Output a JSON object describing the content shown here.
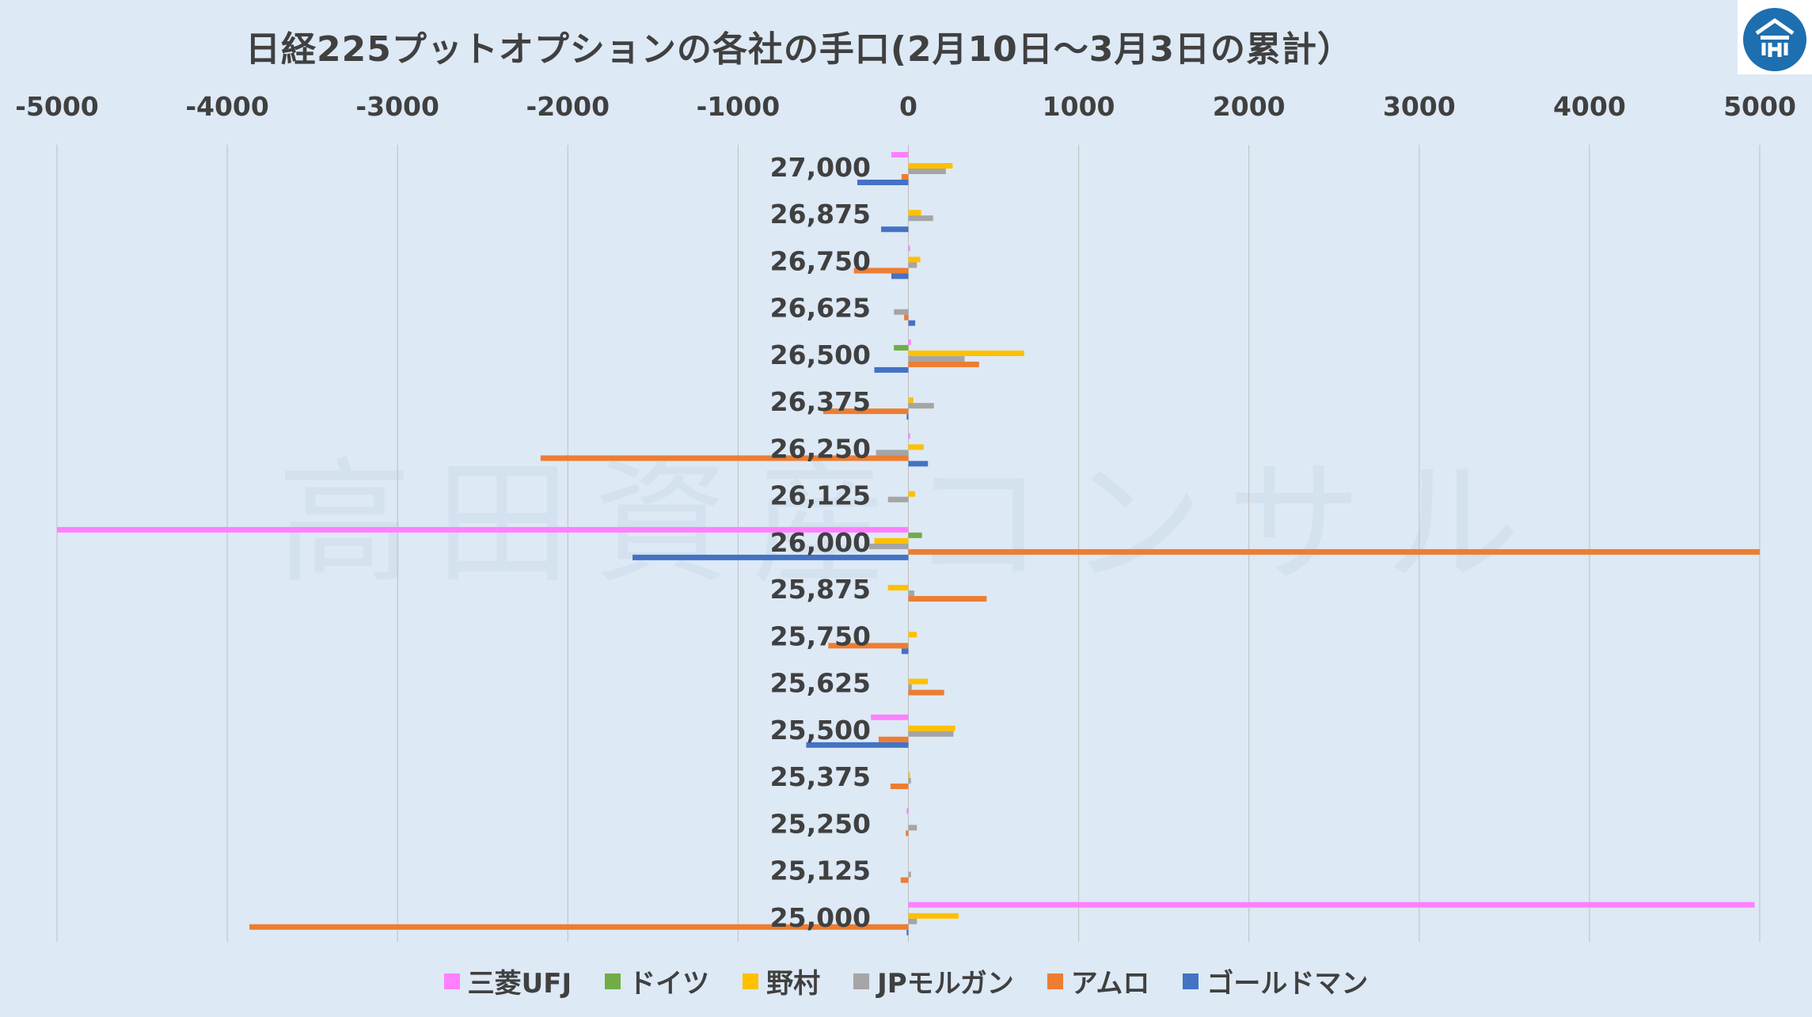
{
  "title": "日経225プットオプションの各社の手口(2月10日～3月3日の累計）",
  "watermark": "高田資産コンサル",
  "colors": {
    "background": "#dde9f5",
    "gridline": "#bfbfbf",
    "axis_text": "#404040"
  },
  "chart_data": {
    "type": "bar",
    "orientation": "horizontal",
    "title": "日経225プットオプションの各社の手口(2月10日～3月3日の累計）",
    "xlim": [
      -5000,
      5000
    ],
    "x_ticks": [
      "-5000",
      "-4000",
      "-3000",
      "-2000",
      "-1000",
      "0",
      "1000",
      "2000",
      "3000",
      "4000",
      "5000"
    ],
    "x_tick_values": [
      -5000,
      -4000,
      -3000,
      -2000,
      -1000,
      0,
      1000,
      2000,
      3000,
      4000,
      5000
    ],
    "grid": true,
    "legend_position": "bottom",
    "categories": [
      "27,000",
      "26,875",
      "26,750",
      "26,625",
      "26,500",
      "26,375",
      "26,250",
      "26,125",
      "26,000",
      "25,875",
      "25,750",
      "25,625",
      "25,500",
      "25,375",
      "25,250",
      "25,125",
      "25,000"
    ],
    "series": [
      {
        "name": "三菱UFJ",
        "color": "#ff80ff",
        "values": [
          -100,
          0,
          10,
          0,
          15,
          0,
          10,
          0,
          -5000,
          0,
          0,
          0,
          -220,
          0,
          -10,
          0,
          4970
        ]
      },
      {
        "name": "ドイツ",
        "color": "#70ad47",
        "values": [
          0,
          0,
          0,
          0,
          -85,
          0,
          0,
          0,
          80,
          0,
          0,
          0,
          0,
          0,
          0,
          0,
          0
        ]
      },
      {
        "name": "野村",
        "color": "#ffc000",
        "values": [
          260,
          75,
          70,
          0,
          680,
          30,
          90,
          40,
          -200,
          -120,
          50,
          115,
          275,
          10,
          0,
          0,
          295
        ]
      },
      {
        "name": "JPモルガン",
        "color": "#a5a5a5",
        "values": [
          220,
          145,
          50,
          -85,
          330,
          150,
          -190,
          -120,
          -230,
          35,
          0,
          20,
          265,
          15,
          50,
          15,
          50
        ]
      },
      {
        "name": "アムロ",
        "color": "#ed7d31",
        "values": [
          -40,
          0,
          -320,
          -25,
          415,
          -500,
          -2160,
          0,
          5000,
          460,
          -470,
          210,
          -175,
          -105,
          -15,
          -45,
          -3870
        ]
      },
      {
        "name": "ゴールドマン",
        "color": "#4472c4",
        "values": [
          -300,
          -160,
          -100,
          40,
          -200,
          -10,
          115,
          0,
          -1620,
          0,
          -40,
          0,
          -600,
          0,
          0,
          0,
          -10
        ]
      }
    ]
  }
}
